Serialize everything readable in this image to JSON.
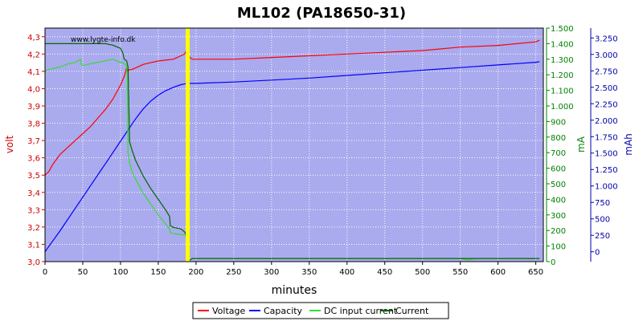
{
  "chart_data": {
    "type": "line",
    "title": "ML102 (PA18650-31)",
    "watermark": "www.lygte-info.dk",
    "xlabel": "minutes",
    "xlim": [
      0,
      660
    ],
    "xticks": [
      "0",
      "50",
      "100",
      "150",
      "200",
      "250",
      "300",
      "350",
      "400",
      "450",
      "500",
      "550",
      "600",
      "650"
    ],
    "axes": {
      "volt": {
        "label": "volt",
        "color": "#cc0000",
        "lim": [
          3.0,
          4.35
        ],
        "ticks": [
          "3,0",
          "3,1",
          "3,2",
          "3,3",
          "3,4",
          "3,5",
          "3,6",
          "3,7",
          "3,8",
          "3,9",
          "4,0",
          "4,1",
          "4,2",
          "4,3"
        ]
      },
      "ma": {
        "label": "mA",
        "color": "#008000",
        "lim": [
          0,
          1500
        ],
        "ticks": [
          "0",
          "100",
          "200",
          "300",
          "400",
          "500",
          "600",
          "700",
          "800",
          "900",
          "1.000",
          "1.100",
          "1.200",
          "1.300",
          "1.400",
          "1.500"
        ]
      },
      "mah": {
        "label": "mAh",
        "color": "#0000aa",
        "lim": [
          -150,
          3400
        ],
        "ticks": [
          "0",
          "250",
          "500",
          "750",
          "1.000",
          "1.250",
          "1.500",
          "1.750",
          "2.000",
          "2.250",
          "2.500",
          "2.750",
          "3.000",
          "3.250"
        ]
      }
    },
    "marker_x": 189,
    "grid": true,
    "legend": "bottom",
    "series": [
      {
        "name": "Voltage",
        "axis": "volt",
        "color": "#ff0000",
        "x": [
          0,
          5,
          10,
          20,
          30,
          40,
          50,
          60,
          70,
          80,
          90,
          100,
          105,
          108,
          110,
          112,
          115,
          120,
          130,
          140,
          150,
          160,
          170,
          180,
          185,
          187,
          189,
          192,
          195,
          200,
          220,
          250,
          300,
          350,
          400,
          450,
          500,
          550,
          600,
          650,
          655
        ],
        "y": [
          3.5,
          3.52,
          3.56,
          3.62,
          3.66,
          3.7,
          3.74,
          3.78,
          3.83,
          3.88,
          3.94,
          4.02,
          4.07,
          4.12,
          4.1,
          4.11,
          4.11,
          4.12,
          4.14,
          4.15,
          4.16,
          4.165,
          4.17,
          4.19,
          4.2,
          4.22,
          4.2,
          4.18,
          4.17,
          4.17,
          4.17,
          4.17,
          4.18,
          4.19,
          4.2,
          4.21,
          4.22,
          4.24,
          4.25,
          4.27,
          4.28
        ]
      },
      {
        "name": "Capacity",
        "axis": "mah",
        "color": "#0000ff",
        "x": [
          0,
          20,
          40,
          60,
          80,
          100,
          110,
          120,
          130,
          140,
          150,
          160,
          170,
          180,
          188,
          189,
          200,
          250,
          300,
          350,
          400,
          450,
          500,
          550,
          600,
          650,
          655
        ],
        "y": [
          0,
          320,
          660,
          1000,
          1340,
          1680,
          1850,
          2020,
          2170,
          2290,
          2380,
          2450,
          2500,
          2540,
          2560,
          2560,
          2560,
          2580,
          2610,
          2640,
          2680,
          2720,
          2760,
          2800,
          2840,
          2880,
          2890
        ]
      },
      {
        "name": "DC input current",
        "axis": "ma",
        "color": "#33dd33",
        "x": [
          0,
          2,
          10,
          20,
          30,
          40,
          47,
          48,
          50,
          60,
          70,
          80,
          90,
          95,
          100,
          103,
          105,
          108,
          109,
          110,
          112,
          115,
          120,
          130,
          140,
          150,
          160,
          165,
          166,
          170,
          180,
          185,
          186,
          187,
          189,
          195,
          300,
          400,
          500,
          550,
          560,
          570,
          600,
          650,
          655
        ],
        "y": [
          1220,
          1230,
          1240,
          1250,
          1270,
          1280,
          1300,
          1270,
          1260,
          1270,
          1280,
          1290,
          1300,
          1290,
          1280,
          1280,
          1270,
          1260,
          1200,
          700,
          640,
          580,
          530,
          440,
          370,
          300,
          240,
          210,
          185,
          180,
          175,
          170,
          170,
          160,
          0,
          20,
          20,
          20,
          20,
          20,
          10,
          20,
          20,
          20,
          20
        ]
      },
      {
        "name": "Current",
        "axis": "ma",
        "color": "#006600",
        "x": [
          0,
          10,
          50,
          80,
          90,
          95,
          100,
          103,
          105,
          108,
          110,
          111,
          112,
          115,
          120,
          130,
          140,
          150,
          160,
          165,
          166,
          170,
          180,
          185,
          186,
          187,
          189,
          195,
          300,
          400,
          500,
          600,
          650,
          655
        ],
        "y": [
          1400,
          1400,
          1400,
          1400,
          1390,
          1380,
          1370,
          1340,
          1300,
          1290,
          1250,
          1010,
          770,
          720,
          650,
          550,
          470,
          400,
          330,
          290,
          230,
          220,
          210,
          190,
          180,
          170,
          0,
          20,
          20,
          20,
          20,
          20,
          20,
          20
        ]
      }
    ]
  }
}
